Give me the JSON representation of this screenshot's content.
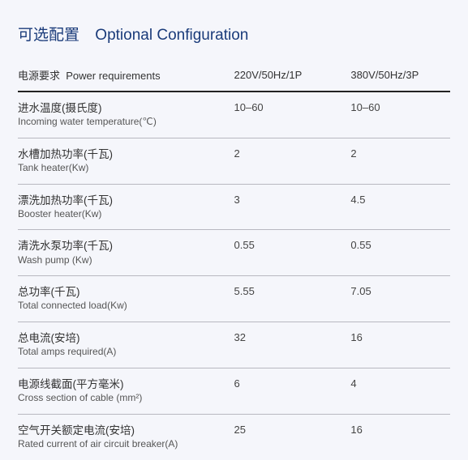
{
  "title": {
    "cn": "可选配置",
    "en": "Optional Configuration"
  },
  "header": {
    "label_cn": "电源要求",
    "label_en": "Power requirements",
    "col1": "220V/50Hz/1P",
    "col2": "380V/50Hz/3P"
  },
  "rows": [
    {
      "cn": "进水温度(摄氏度)",
      "en": "Incoming water  temperature(℃)",
      "v1": "10–60",
      "v2": "10–60"
    },
    {
      "cn": "水槽加热功率(千瓦)",
      "en": "Tank heater(Kw)",
      "v1": "2",
      "v2": "2"
    },
    {
      "cn": "漂洗加热功率(千瓦)",
      "en": "Booster heater(Kw)",
      "v1": "3",
      "v2": "4.5"
    },
    {
      "cn": "清洗水泵功率(千瓦)",
      "en": "Wash pump (Kw)",
      "v1": "0.55",
      "v2": "0.55"
    },
    {
      "cn": "总功率(千瓦)",
      "en": "Total connected load(Kw)",
      "v1": "5.55",
      "v2": "7.05"
    },
    {
      "cn": "总电流(安培)",
      "en": "Total amps required(A)",
      "v1": "32",
      "v2": "16"
    },
    {
      "cn": "电源线截面(平方毫米)",
      "en": "Cross section of cable (mm²)",
      "v1": "6",
      "v2": "4"
    },
    {
      "cn": "空气开关额定电流(安培)",
      "en": "Rated current of air circuit breaker(A)",
      "v1": "25",
      "v2": "16"
    }
  ],
  "styling": {
    "type": "table",
    "background_color": "#f5f6fb",
    "title_color": "#1a3b7a",
    "title_fontsize": 19,
    "header_border_color": "#222222",
    "header_border_width": 2,
    "row_border_color": "#b8b8c0",
    "row_border_width": 1,
    "text_color": "#444444",
    "label_cn_fontsize": 13.5,
    "label_en_fontsize": 12,
    "value_fontsize": 13,
    "column_widths_pct": [
      50,
      27,
      23
    ]
  }
}
